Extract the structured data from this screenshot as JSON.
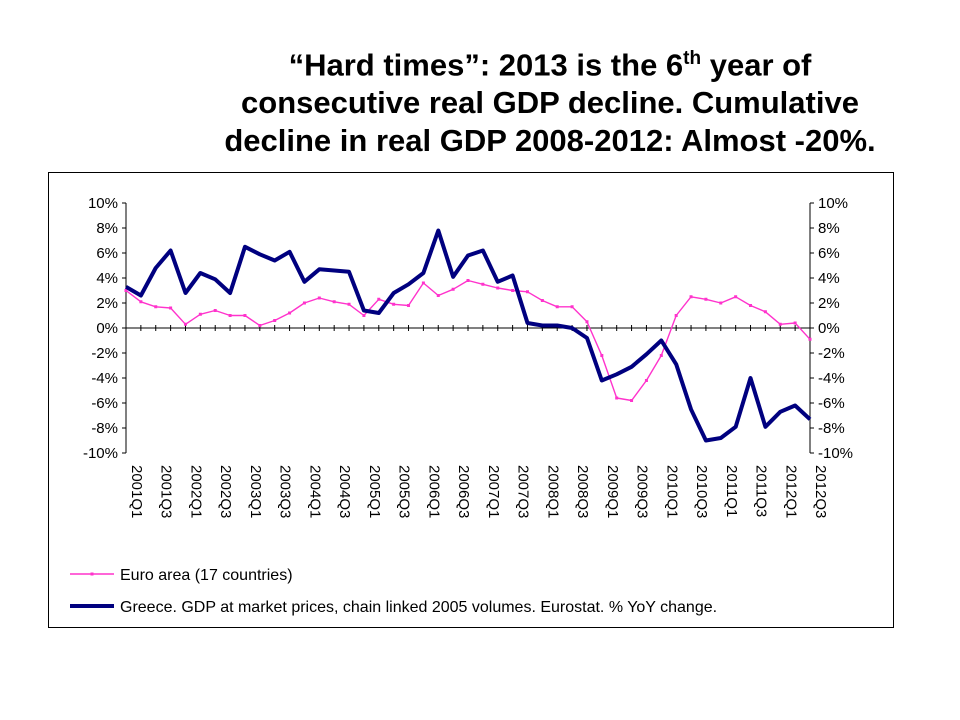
{
  "title": {
    "line1_pre": "“Hard times”:  2013 is the 6",
    "line1_sup": "th",
    "line1_post": " year of",
    "line2": "consecutive real GDP decline. Cumulative",
    "line3": "decline in real GDP 2008-2012: Almost -20%."
  },
  "chart_data": {
    "type": "line",
    "ylim": [
      -10,
      10
    ],
    "y_ticks": [
      "10%",
      "8%",
      "6%",
      "4%",
      "2%",
      "0%",
      "-2%",
      "-4%",
      "-6%",
      "-8%",
      "-10%"
    ],
    "y2_ticks": [
      "10%",
      "8%",
      "6%",
      "4%",
      "2%",
      "0%",
      "-2%",
      "-4%",
      "-6%",
      "-8%",
      "-10%"
    ],
    "x_tick_labels": [
      "2001Q1",
      "2001Q3",
      "2002Q1",
      "2002Q3",
      "2003Q1",
      "2003Q3",
      "2004Q1",
      "2004Q3",
      "2005Q1",
      "2005Q3",
      "2006Q1",
      "2006Q3",
      "2007Q1",
      "2007Q3",
      "2008Q1",
      "2008Q3",
      "2009Q1",
      "2009Q3",
      "2010Q1",
      "2010Q3",
      "2011Q1",
      "2011Q3",
      "2012Q1",
      "2012Q3"
    ],
    "x": [
      "2001Q1",
      "2001Q2",
      "2001Q3",
      "2001Q4",
      "2002Q1",
      "2002Q2",
      "2002Q3",
      "2002Q4",
      "2003Q1",
      "2003Q2",
      "2003Q3",
      "2003Q4",
      "2004Q1",
      "2004Q2",
      "2004Q3",
      "2004Q4",
      "2005Q1",
      "2005Q2",
      "2005Q3",
      "2005Q4",
      "2006Q1",
      "2006Q2",
      "2006Q3",
      "2006Q4",
      "2007Q1",
      "2007Q2",
      "2007Q3",
      "2007Q4",
      "2008Q1",
      "2008Q2",
      "2008Q3",
      "2008Q4",
      "2009Q1",
      "2009Q2",
      "2009Q3",
      "2009Q4",
      "2010Q1",
      "2010Q2",
      "2010Q3",
      "2010Q4",
      "2011Q1",
      "2011Q2",
      "2011Q3",
      "2011Q4",
      "2012Q1",
      "2012Q2",
      "2012Q3"
    ],
    "series": [
      {
        "name": "Euro area (17 countries)",
        "color": "#ff33cc",
        "values": [
          3.0,
          2.1,
          1.7,
          1.6,
          0.3,
          1.1,
          1.4,
          1.0,
          1.0,
          0.2,
          0.6,
          1.2,
          2.0,
          2.4,
          2.1,
          1.9,
          1.0,
          2.3,
          1.9,
          1.8,
          3.6,
          2.6,
          3.1,
          3.8,
          3.5,
          3.2,
          3.0,
          2.9,
          2.2,
          1.7,
          1.7,
          0.5,
          -2.2,
          -5.6,
          -5.8,
          -4.2,
          -2.2,
          1.0,
          2.5,
          2.3,
          2.0,
          2.5,
          1.8,
          1.3,
          0.3,
          0.4,
          -0.9
        ]
      },
      {
        "name": "Greece. GDP at market prices, chain linked 2005 volumes. Eurostat. % YoY change.",
        "color": "#00007f",
        "values": [
          3.3,
          2.6,
          4.8,
          6.2,
          2.8,
          4.4,
          3.9,
          2.8,
          6.5,
          5.9,
          5.4,
          6.1,
          3.7,
          4.7,
          4.6,
          4.5,
          1.4,
          1.2,
          2.8,
          3.5,
          4.4,
          7.8,
          4.1,
          5.8,
          6.2,
          3.7,
          4.2,
          0.4,
          0.2,
          0.2,
          0.0,
          -0.8,
          -4.2,
          -3.7,
          -3.1,
          -2.1,
          -1.0,
          -2.9,
          -6.5,
          -9.0,
          -8.8,
          -7.9,
          -4.0,
          -7.9,
          -6.7,
          -6.2,
          -7.3
        ]
      }
    ],
    "legend_position": "bottom-left",
    "grid": false
  }
}
